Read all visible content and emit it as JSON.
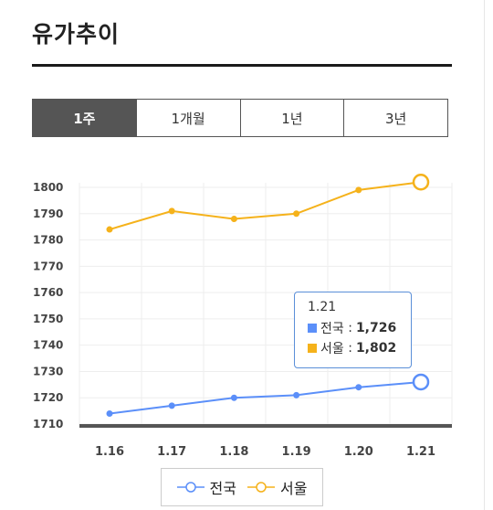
{
  "page": {
    "title": "유가추이"
  },
  "tabs": [
    {
      "label": "1주",
      "active": true
    },
    {
      "label": "1개월",
      "active": false
    },
    {
      "label": "1년",
      "active": false
    },
    {
      "label": "3년",
      "active": false
    }
  ],
  "chart_data": {
    "type": "line",
    "categories": [
      "1.16",
      "1.17",
      "1.18",
      "1.19",
      "1.20",
      "1.21"
    ],
    "series": [
      {
        "name": "전국",
        "color": "#5b8ff9",
        "values": [
          1714,
          1717,
          1720,
          1721,
          1724,
          1726
        ]
      },
      {
        "name": "서울",
        "color": "#f5b21b",
        "values": [
          1784,
          1791,
          1788,
          1790,
          1799,
          1802
        ]
      }
    ],
    "yticks": [
      1710,
      1720,
      1730,
      1740,
      1750,
      1760,
      1770,
      1780,
      1790,
      1800
    ],
    "ylim": [
      1710,
      1810
    ],
    "grid": true,
    "legend_position": "bottom"
  },
  "tooltip": {
    "date": "1.21",
    "rows": [
      {
        "name": "전국",
        "value": "1,726",
        "color": "#5b8ff9"
      },
      {
        "name": "서울",
        "value": "1,802",
        "color": "#f5b21b"
      }
    ]
  },
  "legend": {
    "items": [
      {
        "name": "전국"
      },
      {
        "name": "서울"
      }
    ]
  }
}
